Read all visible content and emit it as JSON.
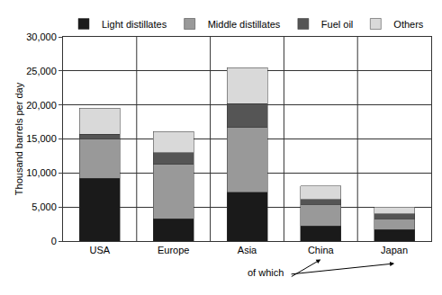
{
  "chart_data": {
    "type": "bar",
    "stacked": true,
    "y_label": "Thousand barrels per day",
    "annotation": "of which",
    "categories": [
      "USA",
      "Europe",
      "Asia",
      "China",
      "Japan"
    ],
    "series": [
      {
        "name": "Light distillates",
        "color": "#1a1a1a",
        "values": [
          9200,
          3300,
          7200,
          2200,
          1700
        ]
      },
      {
        "name": "Middle distillates",
        "color": "#999999",
        "values": [
          5800,
          8000,
          9500,
          3200,
          1600
        ]
      },
      {
        "name": "Fuel oil",
        "color": "#555555",
        "values": [
          700,
          1700,
          3500,
          700,
          700
        ]
      },
      {
        "name": "Others",
        "color": "#d9d9d9",
        "values": [
          3800,
          3100,
          5300,
          2000,
          1000
        ]
      }
    ],
    "ylim": [
      0,
      30000
    ],
    "yticks": [
      0,
      {
        "value": 5000,
        "label": "5,000"
      },
      {
        "value": 10000,
        "label": "10,000"
      },
      {
        "value": 15000,
        "label": "15,000"
      },
      {
        "value": 20000,
        "label": "20,000"
      },
      {
        "value": 25000,
        "label": "25,000"
      },
      {
        "value": 30000,
        "label": "30,000"
      }
    ],
    "grid": true,
    "legend": "top"
  }
}
